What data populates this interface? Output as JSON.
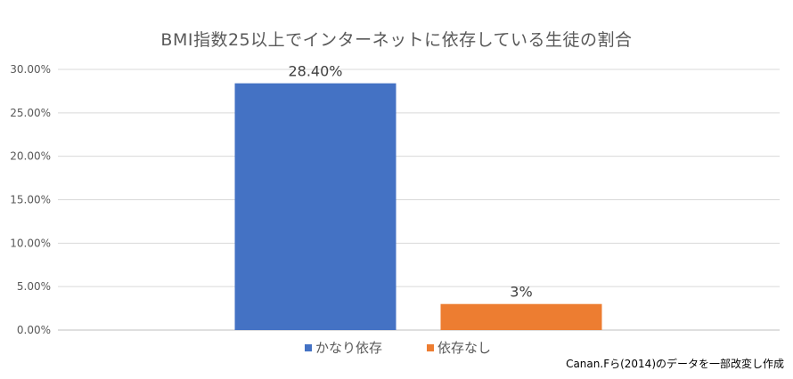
{
  "chart_data": {
    "type": "bar",
    "title": "BMI指数25以上でインターネットに依存している生徒の割合",
    "categories": [
      "かなり依存",
      "依存なし"
    ],
    "values": [
      28.4,
      3.0
    ],
    "data_labels": [
      "28.40%",
      "3%"
    ],
    "colors": [
      "#4472C4",
      "#ED7D31"
    ],
    "ylim": [
      0,
      30
    ],
    "y_ticks": [
      0,
      5,
      10,
      15,
      20,
      25,
      30
    ],
    "y_tick_labels": [
      "0.00%",
      "5.00%",
      "10.00%",
      "15.00%",
      "20.00%",
      "25.00%",
      "30.00%"
    ],
    "legend": [
      {
        "label": "かなり依存",
        "color": "#4472C4"
      },
      {
        "label": "依存なし",
        "color": "#ED7D31"
      }
    ],
    "legend_position": "bottom",
    "grid": true,
    "xlabel": "",
    "ylabel": ""
  },
  "source_note": "Canan.Fら(2014)のデータを一部改変し作成"
}
